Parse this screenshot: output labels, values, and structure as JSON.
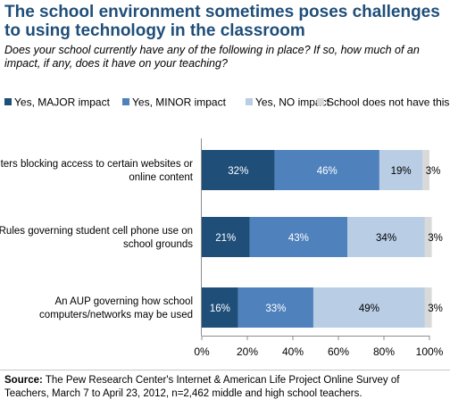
{
  "title": "The school environment sometimes poses challenges to using technology in the classroom",
  "subtitle": "Does your school currently have any of the following in place? If so, how much of an impact, if any, does it have on your teaching?",
  "source_label": "Source:",
  "source_text": "The Pew Research Center's Internet & American Life Project Online Survey of Teachers, March 7 to April 23, 2012, n=2,462 middle and high school teachers.",
  "colors": {
    "major": "#1f4e79",
    "minor": "#4f81bd",
    "no": "#b9cde5",
    "none": "#d9d9d9"
  },
  "chart_data": {
    "type": "bar",
    "orientation": "horizontal",
    "stacked": true,
    "title": "The school environment sometimes poses challenges to using technology in the classroom",
    "categories": [
      [
        "Filters blocking access to certain websites or",
        "online content"
      ],
      [
        "Rules governing student cell phone use on",
        "school grounds"
      ],
      [
        "An AUP governing how school",
        "computers/networks may be used"
      ]
    ],
    "series": [
      {
        "name": "Yes, MAJOR impact",
        "values": [
          32,
          21,
          16
        ],
        "labels": [
          "32%",
          "21%",
          "16%"
        ],
        "color": "#1f4e79",
        "label_color": "#ffffff"
      },
      {
        "name": "Yes, MINOR impact",
        "values": [
          46,
          43,
          33
        ],
        "labels": [
          "46%",
          "43%",
          "33%"
        ],
        "color": "#4f81bd",
        "label_color": "#ffffff"
      },
      {
        "name": "Yes, NO impact",
        "values": [
          19,
          34,
          49
        ],
        "labels": [
          "19%",
          "34%",
          "49%"
        ],
        "color": "#b9cde5",
        "label_color": "#000000"
      },
      {
        "name": "School does not have this",
        "values": [
          3,
          3,
          3
        ],
        "labels": [
          "3%",
          "3%",
          "3%"
        ],
        "color": "#d9d9d9",
        "label_color": "#000000"
      }
    ],
    "xlim": [
      0,
      100
    ],
    "xticks": [
      "0%",
      "20%",
      "40%",
      "60%",
      "80%",
      "100%"
    ],
    "legend_position": "top",
    "grid": false
  }
}
